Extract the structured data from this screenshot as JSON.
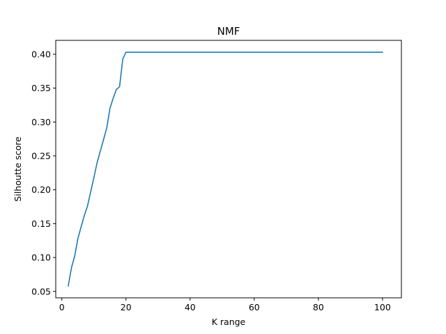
{
  "chart_data": {
    "type": "line",
    "title": "NMF",
    "xlabel": "K range",
    "ylabel": "Silhoutte score",
    "xlim": [
      -1.9,
      105.9
    ],
    "ylim": [
      0.0405,
      0.4205
    ],
    "xticks": [
      0,
      20,
      40,
      60,
      80,
      100
    ],
    "xtick_labels": [
      "0",
      "20",
      "40",
      "60",
      "80",
      "100"
    ],
    "yticks": [
      0.05,
      0.1,
      0.15,
      0.2,
      0.25,
      0.3,
      0.35,
      0.4
    ],
    "ytick_labels": [
      "0.05",
      "0.10",
      "0.15",
      "0.20",
      "0.25",
      "0.30",
      "0.35",
      "0.40"
    ],
    "grid": false,
    "line_color": "#1f77b4",
    "series": [
      {
        "x": [
          2,
          3,
          4,
          5,
          6,
          7,
          8,
          9,
          10,
          11,
          12,
          13,
          14,
          15,
          16,
          17,
          18,
          19,
          20,
          21,
          100
        ],
        "values": [
          0.058,
          0.085,
          0.102,
          0.128,
          0.145,
          0.162,
          0.176,
          0.197,
          0.218,
          0.24,
          0.257,
          0.274,
          0.291,
          0.32,
          0.335,
          0.348,
          0.352,
          0.393,
          0.403,
          0.403,
          0.403
        ]
      }
    ]
  }
}
